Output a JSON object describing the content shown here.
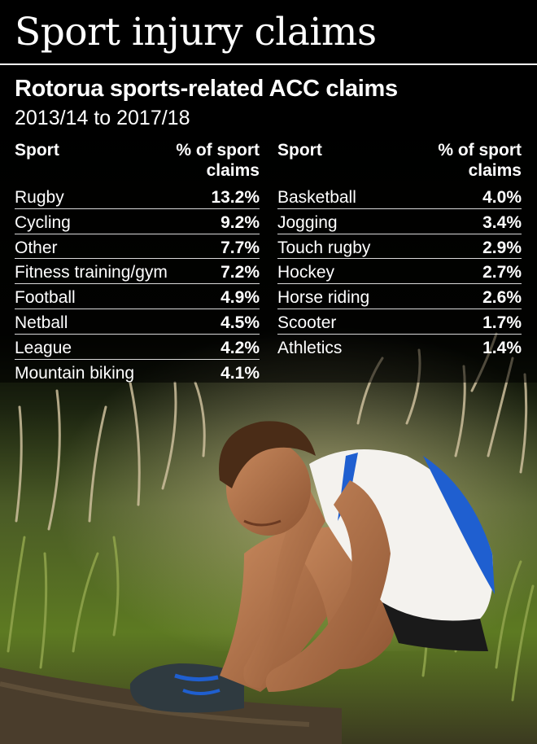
{
  "title": "Sport injury claims",
  "subtitle": "Rotorua sports-related ACC claims",
  "period": "2013/14 to 2017/18",
  "headers": {
    "sport": "Sport",
    "pct_line1": "% of sport",
    "pct_line2": "claims"
  },
  "chart_data": {
    "type": "table",
    "columns": [
      "Sport",
      "% of sport claims"
    ],
    "rows": [
      {
        "sport": "Rugby",
        "value": "13.2%"
      },
      {
        "sport": "Cycling",
        "value": "9.2%"
      },
      {
        "sport": "Other",
        "value": "7.7%"
      },
      {
        "sport": "Fitness training/gym",
        "value": "7.2%"
      },
      {
        "sport": "Football",
        "value": "4.9%"
      },
      {
        "sport": "Netball",
        "value": "4.5%"
      },
      {
        "sport": "League",
        "value": "4.2%"
      },
      {
        "sport": "Mountain biking",
        "value": "4.1%"
      },
      {
        "sport": "Basketball",
        "value": "4.0%"
      },
      {
        "sport": "Jogging",
        "value": "3.4%"
      },
      {
        "sport": "Touch rugby",
        "value": "2.9%"
      },
      {
        "sport": "Hockey",
        "value": "2.7%"
      },
      {
        "sport": "Horse riding",
        "value": "2.6%"
      },
      {
        "sport": "Scooter",
        "value": "1.7%"
      },
      {
        "sport": "Athletics",
        "value": "1.4%"
      }
    ]
  },
  "colors": {
    "background": "#000000",
    "text": "#ffffff",
    "grass": "#6a8a2a",
    "grass_light": "#c9b79a",
    "singlet_blue": "#1f5fd0",
    "skin": "#b9754c"
  }
}
